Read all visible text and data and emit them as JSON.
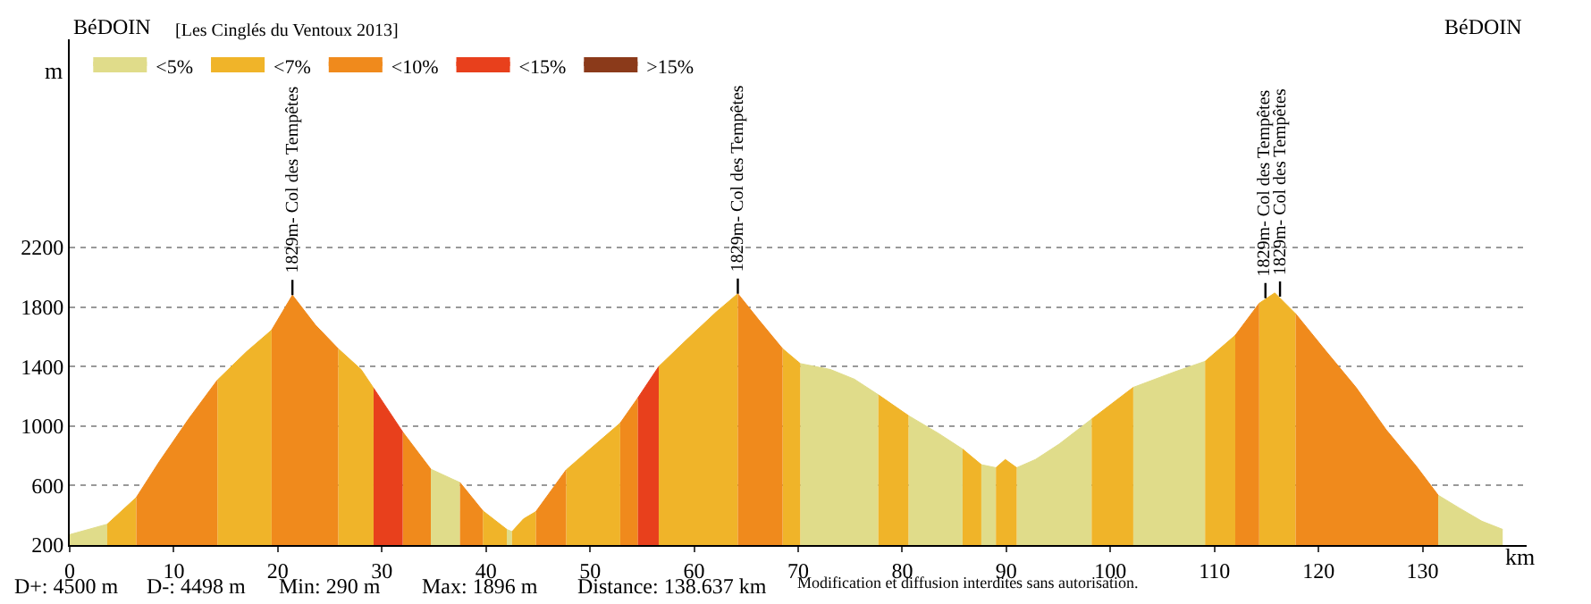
{
  "chart_data": {
    "type": "area",
    "title": "[Les Cinglés du Ventoux 2013]",
    "xlabel": "km",
    "ylabel": "m",
    "xlim": [
      0,
      140
    ],
    "xticks": [
      0,
      10,
      20,
      30,
      40,
      50,
      60,
      70,
      80,
      90,
      100,
      110,
      120,
      130
    ],
    "ylim": [
      200,
      3600
    ],
    "yticks": [
      200,
      600,
      1000,
      1400,
      1800,
      2200
    ],
    "grid": "y",
    "legend": "top left",
    "marker": "none",
    "series": [
      {
        "name": "<5%",
        "color": "#e0dc8a",
        "x": [
          0,
          3.6,
          null,
          34.7,
          37.5,
          null,
          42,
          42.5,
          null,
          70.2,
          73.1,
          75.4,
          77.7,
          null,
          80.6,
          83.5,
          85.8,
          null,
          87.6,
          89,
          null,
          91,
          92.8,
          95.1,
          98.2,
          null,
          102.2,
          106.2,
          109.1,
          null,
          131.5,
          133.5,
          135.7,
          137.7
        ],
        "values": [
          270,
          340,
          null,
          710,
          620,
          null,
          305,
          290,
          null,
          1420,
          1380,
          1315,
          1210,
          null,
          1070,
          950,
          845,
          null,
          740,
          720,
          null,
          720,
          775,
          880,
          1047,
          null,
          1260,
          1365,
          1435,
          null,
          535,
          450,
          360,
          305
        ]
      },
      {
        "name": "<7%",
        "color": "#f0b429",
        "x": [
          3.6,
          6.4,
          null,
          14.2,
          17,
          19.4,
          null,
          25.8,
          28,
          29.2,
          null,
          39.7,
          42,
          null,
          42.5,
          43.6,
          44.8,
          null,
          47.7,
          50,
          52.9,
          null,
          56.6,
          59.2,
          62.1,
          64.2,
          null,
          68.5,
          70.2,
          null,
          77.7,
          80.6,
          null,
          85.8,
          87.6,
          null,
          89,
          89.9,
          91,
          null,
          98.2,
          102.2,
          null,
          109.1,
          112,
          null,
          114.3,
          115.8,
          117.8
        ],
        "values": [
          340,
          520,
          null,
          1310,
          1500,
          1645,
          null,
          1520,
          1380,
          1255,
          null,
          430,
          305,
          null,
          290,
          375,
          425,
          null,
          705,
          845,
          1020,
          null,
          1400,
          1575,
          1765,
          1890,
          null,
          1520,
          1420,
          null,
          1210,
          1070,
          null,
          845,
          740,
          null,
          720,
          775,
          720,
          null,
          1047,
          1260,
          null,
          1435,
          1610,
          null,
          1825,
          1895,
          1755
        ]
      },
      {
        "name": "<10%",
        "color": "#f08a1c",
        "x": [
          6.4,
          8.6,
          11.4,
          14.2,
          null,
          19.4,
          21.4,
          23.6,
          25.8,
          null,
          32,
          34.7,
          null,
          37.5,
          39.7,
          null,
          44.8,
          47.7,
          null,
          52.9,
          54.6,
          null,
          64.2,
          66.2,
          68.5,
          null,
          112,
          114.3,
          null,
          117.8,
          120.7,
          123.6,
          126.5,
          129.4,
          131.5
        ],
        "values": [
          520,
          760,
          1045,
          1310,
          null,
          1645,
          1880,
          1680,
          1520,
          null,
          960,
          710,
          null,
          620,
          430,
          null,
          425,
          705,
          null,
          1020,
          1190,
          null,
          1890,
          1715,
          1520,
          null,
          1610,
          1825,
          null,
          1755,
          1505,
          1260,
          975,
          730,
          535
        ]
      },
      {
        "name": "<15%",
        "color": "#e8401c",
        "x": [
          29.2,
          32,
          null,
          54.6,
          56.6
        ],
        "values": [
          1255,
          960,
          null,
          1190,
          1400
        ]
      },
      {
        "name": ">15%",
        "color": "#8b3a1a"
      }
    ],
    "annotations": [
      "BéDOIN",
      "BéDOIN",
      {
        "text": "1829m- Col des Tempêtes",
        "x": 21.4,
        "y": 1880
      },
      {
        "text": "1829m- Col des Tempêtes",
        "x": 64.2,
        "y": 1890
      },
      {
        "text": "1829m- Col des Tempêtes",
        "x": 114.9,
        "y": 1860
      },
      {
        "text": "1829m- Col des Tempêtes",
        "x": 116.3,
        "y": 1870
      },
      "D+: 4500 m",
      "D-: 4498 m",
      "Min: 290 m",
      "Max: 1896 m",
      "Distance: 138.637 km",
      "Modification et diffusion interdites sans autorisation."
    ]
  }
}
